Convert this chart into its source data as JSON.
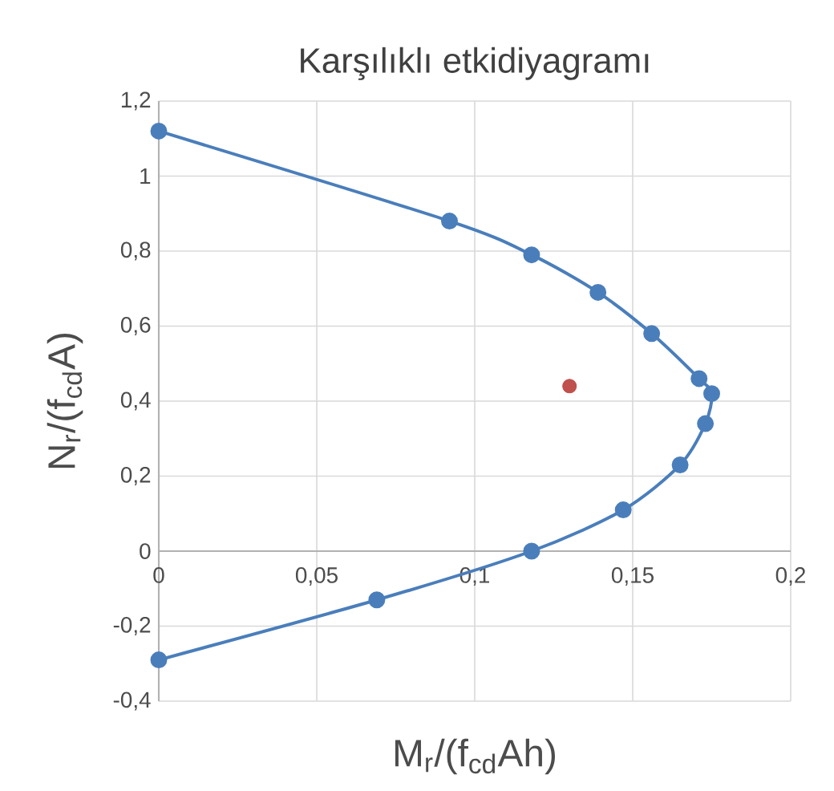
{
  "chart_data": {
    "type": "line",
    "title": "Karşılıklı etkidiyagramı",
    "xlabel": "M$_{r}$/(f$_{cd}$Ah)",
    "ylabel": "N$_{r}$/(f$_{cd}$A)",
    "xlim": [
      0,
      0.2
    ],
    "ylim": [
      -0.4,
      1.2
    ],
    "xticks": [
      0,
      {
        "value": 0.05,
        "label": "0,05"
      },
      {
        "value": 0.1,
        "label": "0,1"
      },
      {
        "value": 0.15,
        "label": "0,15"
      },
      {
        "value": 0.2,
        "label": "0,2"
      }
    ],
    "yticks": [
      {
        "value": -0.4,
        "label": "-0,4"
      },
      {
        "value": -0.2,
        "label": "-0,2"
      },
      0,
      {
        "value": 0.2,
        "label": "0,2"
      },
      {
        "value": 0.4,
        "label": "0,4"
      },
      {
        "value": 0.6,
        "label": "0,6"
      },
      {
        "value": 0.8,
        "label": "0,8"
      },
      1,
      {
        "value": 1.2,
        "label": "1,2"
      }
    ],
    "grid": true,
    "marker": "circle",
    "series": [
      {
        "color": "#4a7ebb",
        "x": [
          0,
          0.092,
          0.118,
          0.139,
          0.156,
          0.171,
          0.175,
          0.173,
          0.165,
          0.147,
          0.118,
          0.069,
          0
        ],
        "values": [
          1.12,
          0.88,
          0.79,
          0.69,
          0.58,
          0.46,
          0.42,
          0.34,
          0.23,
          0.11,
          0,
          -0.13,
          -0.29
        ]
      },
      {
        "type": "scatter",
        "color": "#c0504d",
        "x": [
          0.13
        ],
        "values": [
          0.44
        ]
      }
    ]
  }
}
